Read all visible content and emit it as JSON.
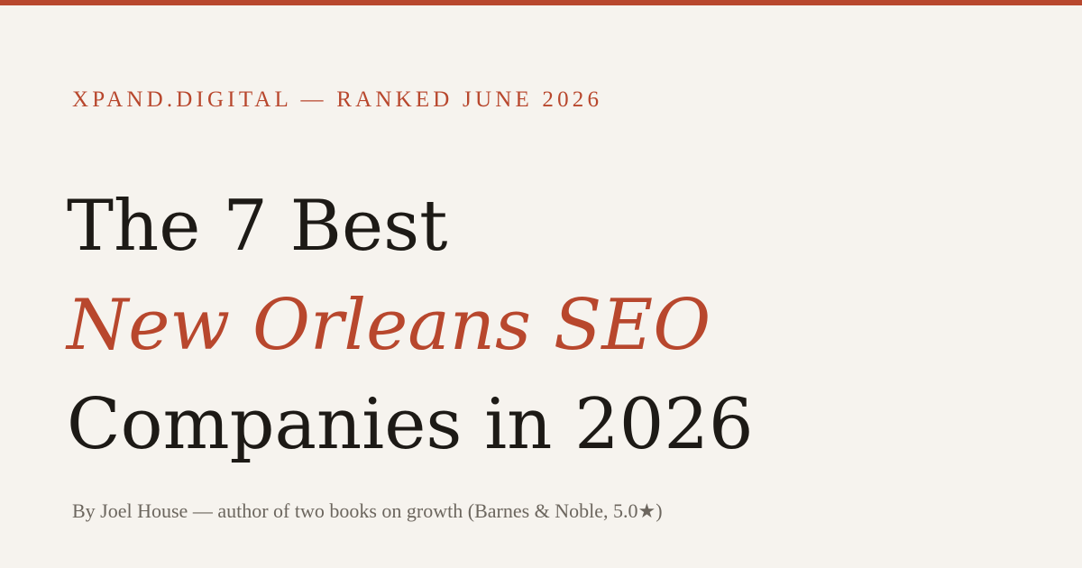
{
  "colors": {
    "accent": "#b8472d",
    "background": "#f6f3ee",
    "headline_text": "#1d1a16",
    "byline_text": "#6c665e"
  },
  "kicker": "XPAND.DIGITAL — RANKED JUNE 2026",
  "headline": {
    "line1": "The 7 Best",
    "line2": "New Orleans SEO",
    "line3": "Companies in 2026"
  },
  "byline": "By Joel House — author of two books on growth (Barnes & Noble, 5.0★)"
}
